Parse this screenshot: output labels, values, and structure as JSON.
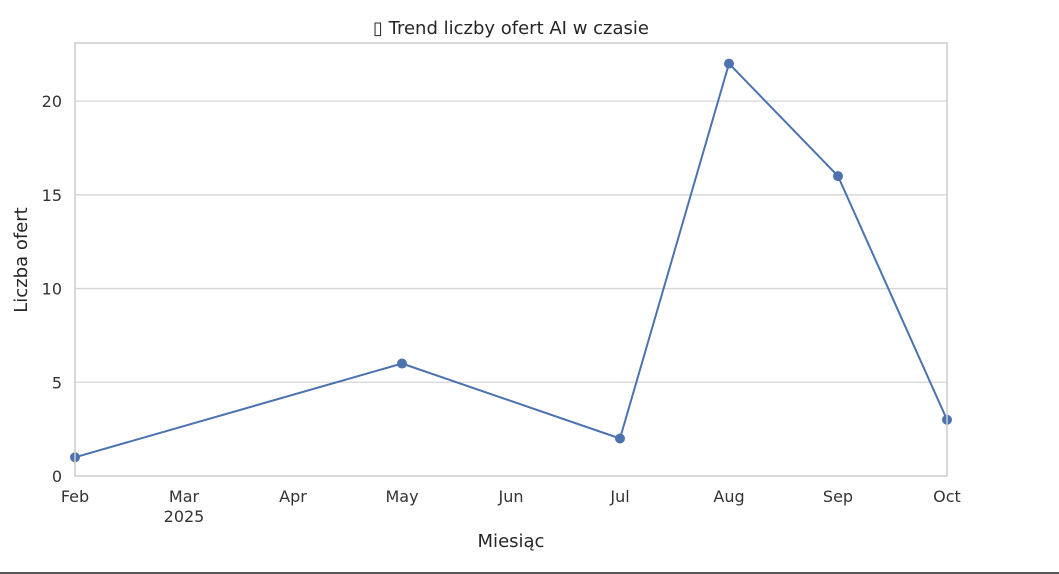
{
  "chart_data": {
    "type": "line",
    "title": "▯ Trend liczby ofert AI w czasie",
    "xlabel": "Miesiąc",
    "ylabel": "Liczba ofert",
    "x": [
      "2025-02",
      "2025-05",
      "2025-07",
      "2025-08",
      "2025-09",
      "2025-10"
    ],
    "series": [
      {
        "values": [
          1,
          6,
          2,
          22,
          16,
          3
        ]
      }
    ],
    "x_ticks": [
      {
        "month": "2025-02",
        "label": "Feb"
      },
      {
        "month": "2025-03",
        "label": "Mar",
        "sublabel": "2025"
      },
      {
        "month": "2025-04",
        "label": "Apr"
      },
      {
        "month": "2025-05",
        "label": "May"
      },
      {
        "month": "2025-06",
        "label": "Jun"
      },
      {
        "month": "2025-07",
        "label": "Jul"
      },
      {
        "month": "2025-08",
        "label": "Aug"
      },
      {
        "month": "2025-09",
        "label": "Sep"
      },
      {
        "month": "2025-10",
        "label": "Oct"
      }
    ],
    "y_ticks": [
      0,
      5,
      10,
      15,
      20
    ],
    "xlim": [
      "2025-02",
      "2025-10"
    ],
    "ylim": [
      0,
      23.1
    ],
    "grid": "horizontal",
    "legend": "none",
    "colors": {
      "line": "#4c72b0",
      "grid": "#d5d5d5",
      "frame": "#cccccc"
    }
  }
}
